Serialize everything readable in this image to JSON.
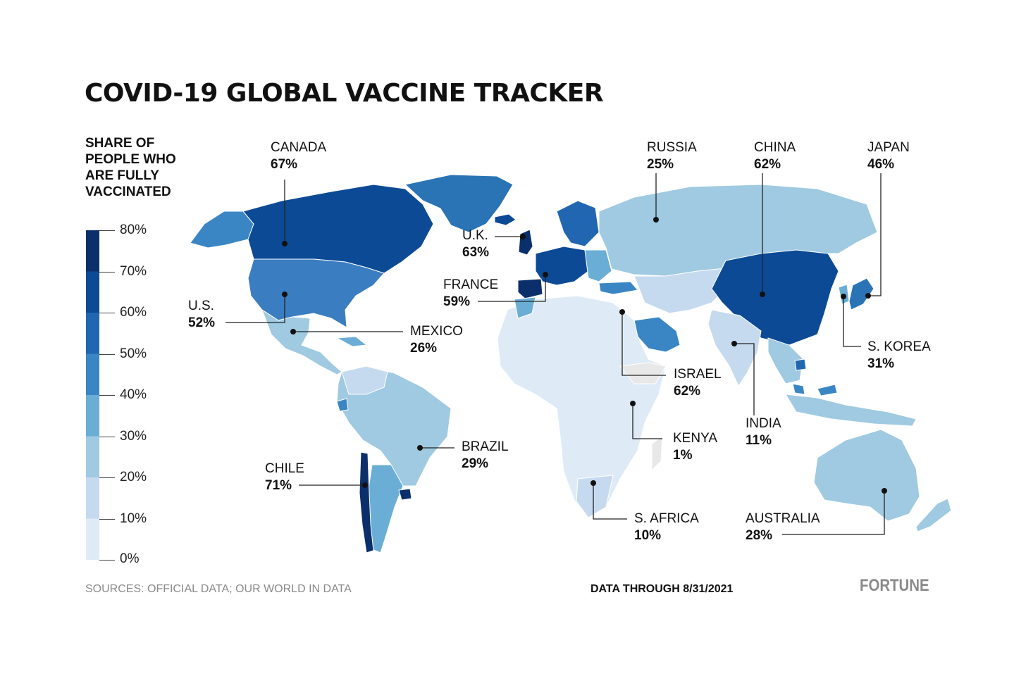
{
  "title": "COVID-19 GLOBAL VACCINE TRACKER",
  "legend": {
    "title_lines": [
      "SHARE OF",
      "PEOPLE WHO",
      "ARE FULLY",
      "VACCINATED"
    ],
    "ticks": [
      "80%",
      "70%",
      "60%",
      "50%",
      "40%",
      "30%",
      "20%",
      "10%",
      "0%"
    ],
    "colors": [
      "#0b2f6b",
      "#0c4a96",
      "#2166b0",
      "#3a86c4",
      "#6aaed6",
      "#9fcae1",
      "#c5daef",
      "#deebf7"
    ]
  },
  "countries": {
    "canada": {
      "name": "CANADA",
      "value": "67%"
    },
    "us": {
      "name": "U.S.",
      "value": "52%"
    },
    "mexico": {
      "name": "MEXICO",
      "value": "26%"
    },
    "brazil": {
      "name": "BRAZIL",
      "value": "29%"
    },
    "chile": {
      "name": "CHILE",
      "value": "71%"
    },
    "uk": {
      "name": "U.K.",
      "value": "63%"
    },
    "france": {
      "name": "FRANCE",
      "value": "59%"
    },
    "israel": {
      "name": "ISRAEL",
      "value": "62%"
    },
    "kenya": {
      "name": "KENYA",
      "value": "1%"
    },
    "safrica": {
      "name": "S. AFRICA",
      "value": "10%"
    },
    "russia": {
      "name": "RUSSIA",
      "value": "25%"
    },
    "china": {
      "name": "CHINA",
      "value": "62%"
    },
    "japan": {
      "name": "JAPAN",
      "value": "46%"
    },
    "skorea": {
      "name": "S. KOREA",
      "value": "31%"
    },
    "india": {
      "name": "INDIA",
      "value": "11%"
    },
    "australia": {
      "name": "AUSTRALIA",
      "value": "28%"
    }
  },
  "footer": {
    "sources": "SOURCES: OFFICIAL DATA; OUR WORLD IN DATA",
    "data_through": "DATA THROUGH 8/31/2021",
    "brand": "FORTUNE"
  }
}
